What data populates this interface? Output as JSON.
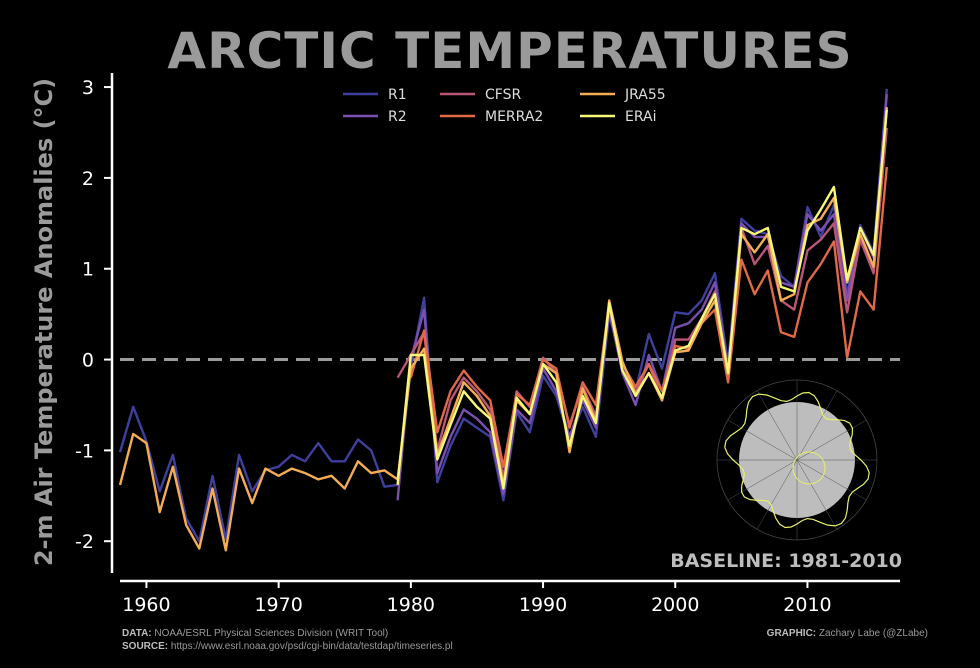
{
  "chart_data": {
    "type": "line",
    "title": "ARCTIC TEMPERATURES",
    "ylabel": "2-m Air Temperature Anomalies (°C)",
    "xlabel": "",
    "xlim": [
      1958,
      2017
    ],
    "ylim": [
      -2.35,
      3.1
    ],
    "xticks": [
      1960,
      1970,
      1980,
      1990,
      2000,
      2010
    ],
    "yticks": [
      -2,
      -1,
      0,
      1,
      2,
      3
    ],
    "zero_line": "dashed",
    "legend": "top-center",
    "baseline_label": "BASELINE: 1981-2010",
    "series": [
      {
        "name": "R1",
        "color": "#3f3f9e",
        "start": 1958,
        "values": [
          -1.02,
          -0.52,
          -0.9,
          -1.45,
          -1.05,
          -1.75,
          -2.0,
          -1.28,
          -1.98,
          -1.05,
          -1.45,
          -1.22,
          -1.18,
          -1.05,
          -1.12,
          -0.92,
          -1.12,
          -1.12,
          -0.88,
          -1.0,
          -1.4,
          -1.38,
          -0.08,
          0.68,
          -1.35,
          -0.95,
          -0.65,
          -0.75,
          -0.85,
          -1.55,
          -0.58,
          -0.8,
          -0.18,
          -0.4,
          -0.88,
          -0.52,
          -0.85,
          0.5,
          -0.1,
          -0.35,
          0.28,
          -0.1,
          0.52,
          0.5,
          0.65,
          0.95,
          -0.05,
          1.55,
          1.42,
          1.38,
          0.92,
          0.8,
          1.68,
          1.35,
          1.7,
          0.72,
          1.48,
          1.18,
          2.98
        ]
      },
      {
        "name": "R2",
        "color": "#7a4fb0",
        "start": 1979,
        "values": [
          -1.55,
          0.0,
          0.55,
          -1.25,
          -0.85,
          -0.55,
          -0.65,
          -0.8,
          -1.48,
          -0.55,
          -0.7,
          -0.1,
          -0.35,
          -0.85,
          -0.45,
          -0.75,
          0.55,
          -0.15,
          -0.5,
          0.05,
          -0.35,
          0.35,
          0.4,
          0.55,
          0.85,
          -0.1,
          1.5,
          1.35,
          1.35,
          0.85,
          0.8,
          1.6,
          1.42,
          1.6,
          0.65,
          1.45,
          1.12,
          2.92
        ]
      },
      {
        "name": "CFSR",
        "color": "#b8567a",
        "start": 1979,
        "values": [
          -0.2,
          0.05,
          0.3,
          -1.0,
          -0.45,
          -0.2,
          -0.35,
          -0.55,
          -1.3,
          -0.35,
          -0.52,
          0.02,
          -0.15,
          -0.72,
          -0.3,
          -0.62,
          0.6,
          -0.12,
          -0.35,
          -0.05,
          -0.45,
          0.22,
          0.22,
          0.45,
          0.75,
          -0.18,
          1.45,
          1.05,
          1.25,
          0.65,
          0.55,
          1.2,
          1.32,
          1.5,
          0.52,
          1.32,
          0.95,
          2.55
        ]
      },
      {
        "name": "MERRA2",
        "color": "#e06a48",
        "start": 1980,
        "values": [
          -0.2,
          0.32,
          -0.8,
          -0.35,
          -0.12,
          -0.3,
          -0.45,
          -1.18,
          -0.38,
          -0.5,
          0.0,
          -0.1,
          -0.75,
          -0.25,
          -0.5,
          0.62,
          -0.05,
          -0.3,
          -0.05,
          -0.35,
          0.15,
          0.12,
          0.4,
          0.55,
          -0.25,
          1.1,
          0.72,
          0.98,
          0.3,
          0.25,
          0.85,
          1.05,
          1.3,
          0.02,
          0.75,
          0.55,
          2.12
        ]
      },
      {
        "name": "JRA55",
        "color": "#f4ad55",
        "start": 1958,
        "values": [
          -1.38,
          -0.82,
          -0.92,
          -1.68,
          -1.18,
          -1.82,
          -2.08,
          -1.42,
          -2.1,
          -1.2,
          -1.58,
          -1.2,
          -1.28,
          -1.2,
          -1.25,
          -1.32,
          -1.28,
          -1.42,
          -1.12,
          -1.25,
          -1.22,
          -1.32,
          -0.1,
          0.12,
          -1.05,
          -0.65,
          -0.25,
          -0.4,
          -0.62,
          -1.38,
          -0.45,
          -0.6,
          -0.05,
          -0.15,
          -1.02,
          -0.32,
          -0.68,
          0.65,
          -0.02,
          -0.38,
          -0.15,
          -0.45,
          0.08,
          0.1,
          0.4,
          0.65,
          -0.15,
          1.38,
          1.18,
          1.38,
          0.65,
          0.72,
          1.48,
          1.55,
          1.78,
          0.85,
          1.38,
          1.02,
          2.78
        ]
      },
      {
        "name": "ERAi",
        "color": "#f7f77a",
        "start": 1979,
        "values": [
          -1.38,
          0.05,
          0.05,
          -1.1,
          -0.72,
          -0.35,
          -0.52,
          -0.65,
          -1.42,
          -0.42,
          -0.6,
          -0.05,
          -0.25,
          -0.95,
          -0.4,
          -0.7,
          0.62,
          -0.12,
          -0.4,
          -0.15,
          -0.42,
          0.1,
          0.15,
          0.45,
          0.72,
          -0.15,
          1.45,
          1.38,
          1.45,
          0.8,
          0.75,
          1.42,
          1.65,
          1.9,
          0.88,
          1.45,
          1.15,
          2.75
        ]
      }
    ]
  },
  "footer": {
    "data_label": "DATA:",
    "data_text": " NOAA/ESRL Physical Sciences Division (WRIT Tool)",
    "source_label": "SOURCE:",
    "source_text": " https://www.esrl.noaa.gov/psd/cgi-bin/data/testdap/timeseries.pl",
    "graphic_label": "GRAPHIC:",
    "graphic_text": " Zachary Labe (@ZLabe)"
  },
  "colors": {
    "background": "#000000",
    "zero_line": "#9a9a9a",
    "axis": "#ffffff",
    "map_land": "#e8f06a",
    "map_disk": "#bdbdbd"
  }
}
